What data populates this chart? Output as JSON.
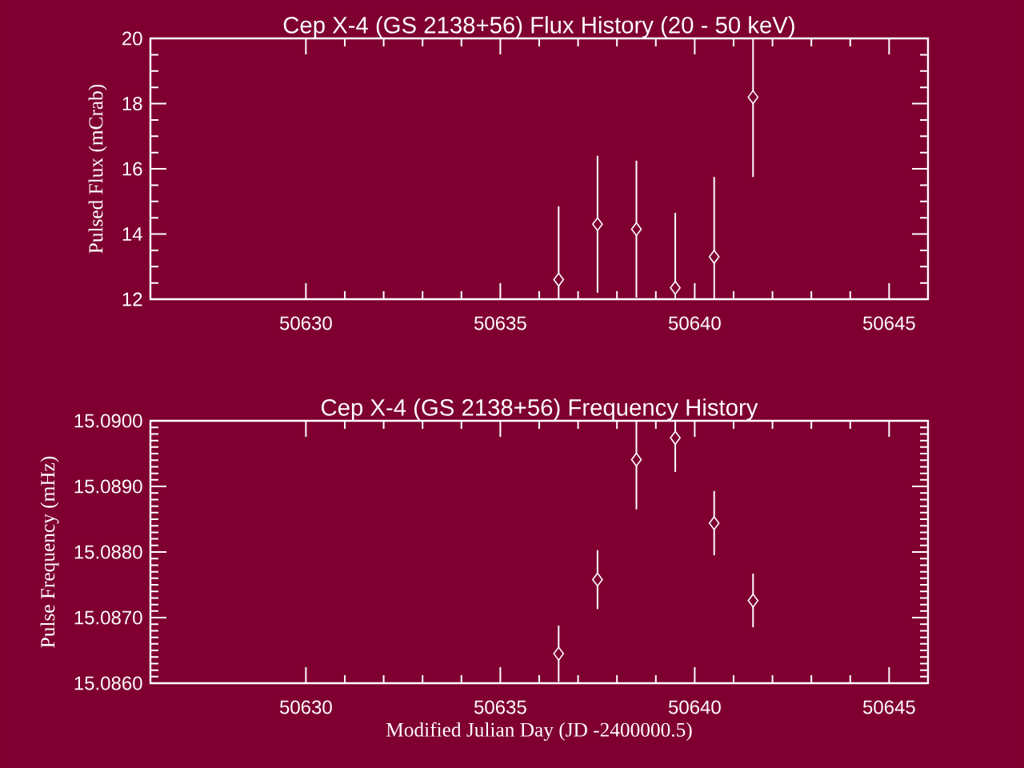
{
  "chart_data": [
    {
      "type": "scatter",
      "title": "Cep X-4 (GS 2138+56) Flux History (20 - 50 keV)",
      "ylabel": "Pulsed Flux (mCrab)",
      "color": "#ffffff",
      "marker": "diamond",
      "grid": false,
      "x": [
        50636.5,
        50637.5,
        50638.5,
        50639.5,
        50640.5,
        50641.5
      ],
      "values": [
        12.6,
        14.3,
        14.15,
        12.35,
        13.3,
        18.2
      ],
      "errors": [
        2.25,
        2.1,
        2.1,
        2.3,
        2.45,
        2.45
      ],
      "xlim": [
        50626,
        50646
      ],
      "xticks": [
        50630,
        50635,
        50640,
        50645
      ],
      "ylim": [
        12,
        20
      ],
      "yticks": [
        12,
        14,
        16,
        18,
        20
      ]
    },
    {
      "type": "scatter",
      "title": "Cep X-4 (GS 2138+56) Frequency History",
      "xlabel": "Modified Julian Day (JD -2400000.5)",
      "ylabel": "Pulse Frequency (mHz)",
      "color": "#ffffff",
      "marker": "diamond",
      "grid": false,
      "x": [
        50636.5,
        50637.5,
        50638.5,
        50639.5,
        50640.5,
        50641.5
      ],
      "values": [
        15.08645,
        15.08758,
        15.08941,
        15.08974,
        15.08844,
        15.08726
      ],
      "errors": [
        0.00043,
        0.00045,
        0.00076,
        0.00052,
        0.00049,
        0.00041
      ],
      "xlim": [
        50626,
        50646
      ],
      "xticks": [
        50630,
        50635,
        50640,
        50645
      ],
      "ylim": [
        15.086,
        15.09
      ],
      "yticks": [
        {
          "value": 15.086,
          "label": "15.0860"
        },
        {
          "value": 15.087,
          "label": "15.0870"
        },
        {
          "value": 15.088,
          "label": "15.0880"
        },
        {
          "value": 15.089,
          "label": "15.0890"
        },
        {
          "value": 15.09,
          "label": "15.0900"
        }
      ]
    }
  ]
}
